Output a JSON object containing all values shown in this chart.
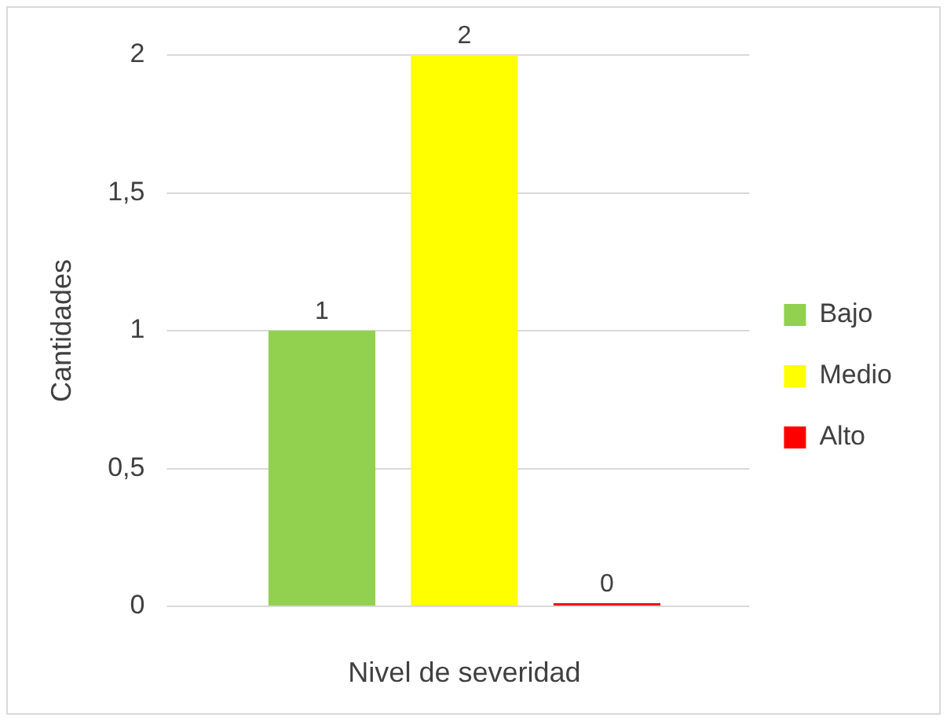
{
  "chart_data": {
    "type": "bar",
    "xlabel": "Nivel de severidad",
    "ylabel": "Cantidades",
    "categories": [
      null
    ],
    "series": [
      {
        "name": "Bajo",
        "color": "#92d050",
        "values": [
          1
        ]
      },
      {
        "name": "Medio",
        "color": "#ffff00",
        "values": [
          2
        ]
      },
      {
        "name": "Alto",
        "color": "#ff0000",
        "values": [
          0
        ]
      }
    ],
    "ylim": [
      0,
      2
    ],
    "yticks": [
      0,
      {
        "value": 0.5,
        "label": "0,5"
      },
      1,
      {
        "value": 1.5,
        "label": "1,5"
      },
      2
    ],
    "grid": "y",
    "legend": "right",
    "data_labels": true
  }
}
